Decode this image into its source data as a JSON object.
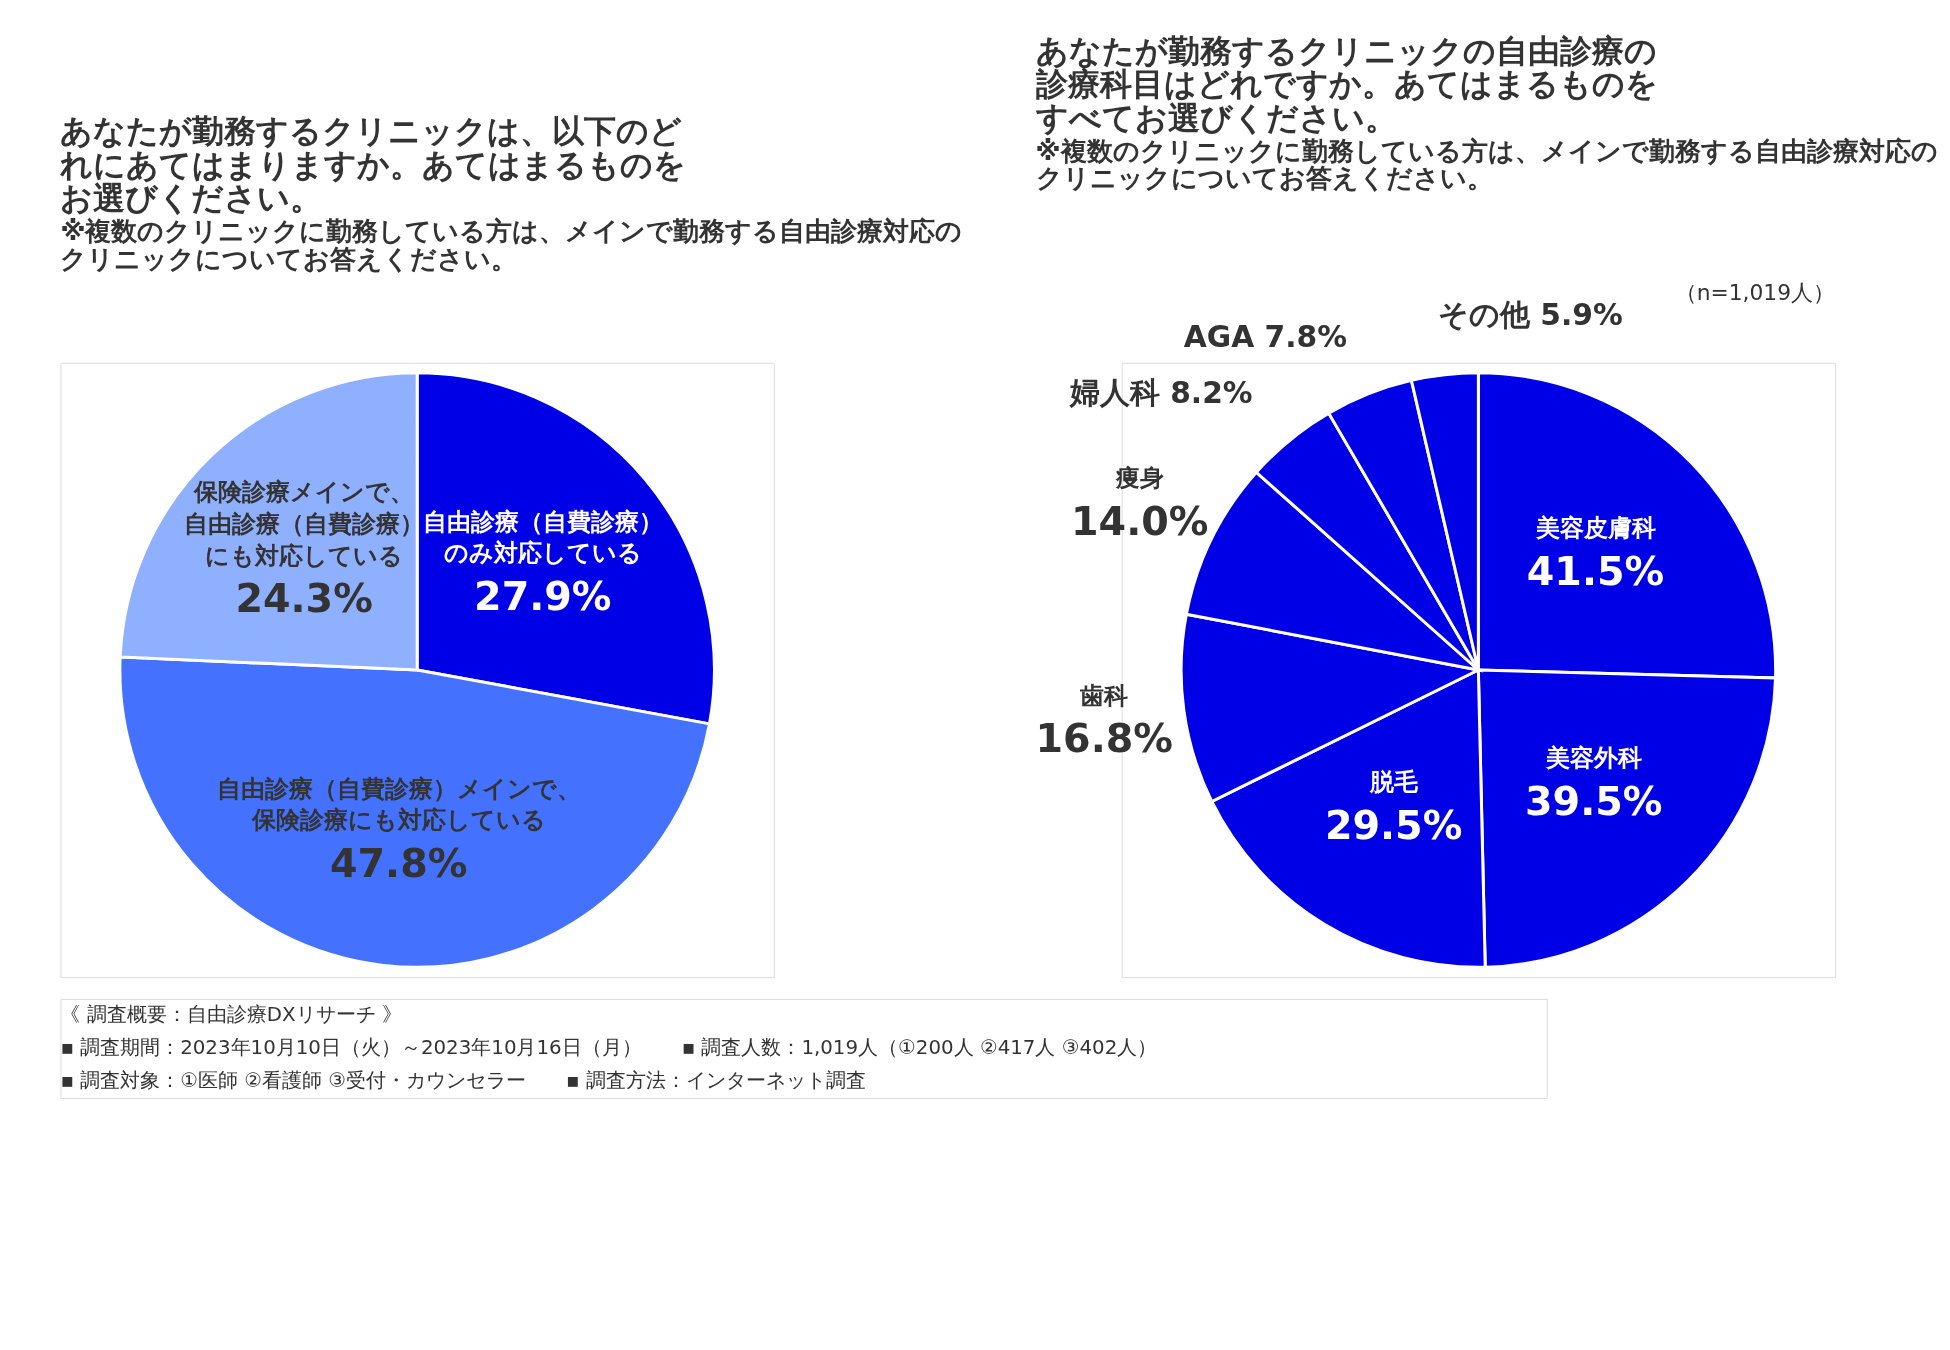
{
  "chart_data": [
    {
      "type": "pie",
      "title": "あなたが勤務するクリニックは、以下のどれにあてはまりますか。あてはまるものをお選びください。",
      "subtitle": "※複数のクリニックに勤務している方は、メインで勤務する自由診療対応のクリニックについてお答えください。",
      "categories": [
        "自由診療（自費診療）のみ対応している",
        "自由診療（自費診療）メインで、保険診療にも対応している",
        "保険診療メインで、自由診療（自費診療）にも対応している"
      ],
      "values": [
        27.9,
        47.8,
        24.3
      ],
      "value_labels": [
        "27.9%",
        "47.8%",
        "24.3%"
      ],
      "colors": [
        "#0000e6",
        "#4472ff",
        "#8fb0ff"
      ],
      "annotations": [
        "《 調査概要：自由診療DXリサーチ 》",
        "▪ 調査期間：2023年10月10日（火）～2023年10月16日（月）　　▪ 調査人数：1,019人（①200人 ②417人 ③402人）",
        "▪ 調査対象：①医師 ②看護師 ③受付・カウンセラー　　▪ 調査方法：インターネット調査"
      ]
    },
    {
      "type": "pie",
      "title": "あなたが勤務するクリニックの自由診療の診療科目はどれですか。あてはまるものをすべてお選びください。",
      "subtitle": "※複数のクリニックに勤務している方は、メインで勤務する自由診療対応のクリニックについてお答えください。",
      "categories": [
        "美容皮膚科",
        "美容外科",
        "脱毛",
        "歯科",
        "痩身",
        "婦人科",
        "AGA",
        "その他"
      ],
      "values": [
        41.5,
        39.5,
        29.5,
        16.8,
        14.0,
        8.2,
        7.8,
        5.9
      ],
      "value_labels": [
        "41.5%",
        "39.5%",
        "29.5%",
        "16.8%",
        "14.0%",
        "8.2%",
        "7.8%",
        "5.9%"
      ],
      "colors": [
        "#0000e6",
        "#0000e6",
        "#0000e6",
        "#0000e6",
        "#0000e6",
        "#0000e6",
        "#0000e6",
        "#0000e6"
      ],
      "annotations": [
        "（n=1,019人）"
      ]
    }
  ]
}
